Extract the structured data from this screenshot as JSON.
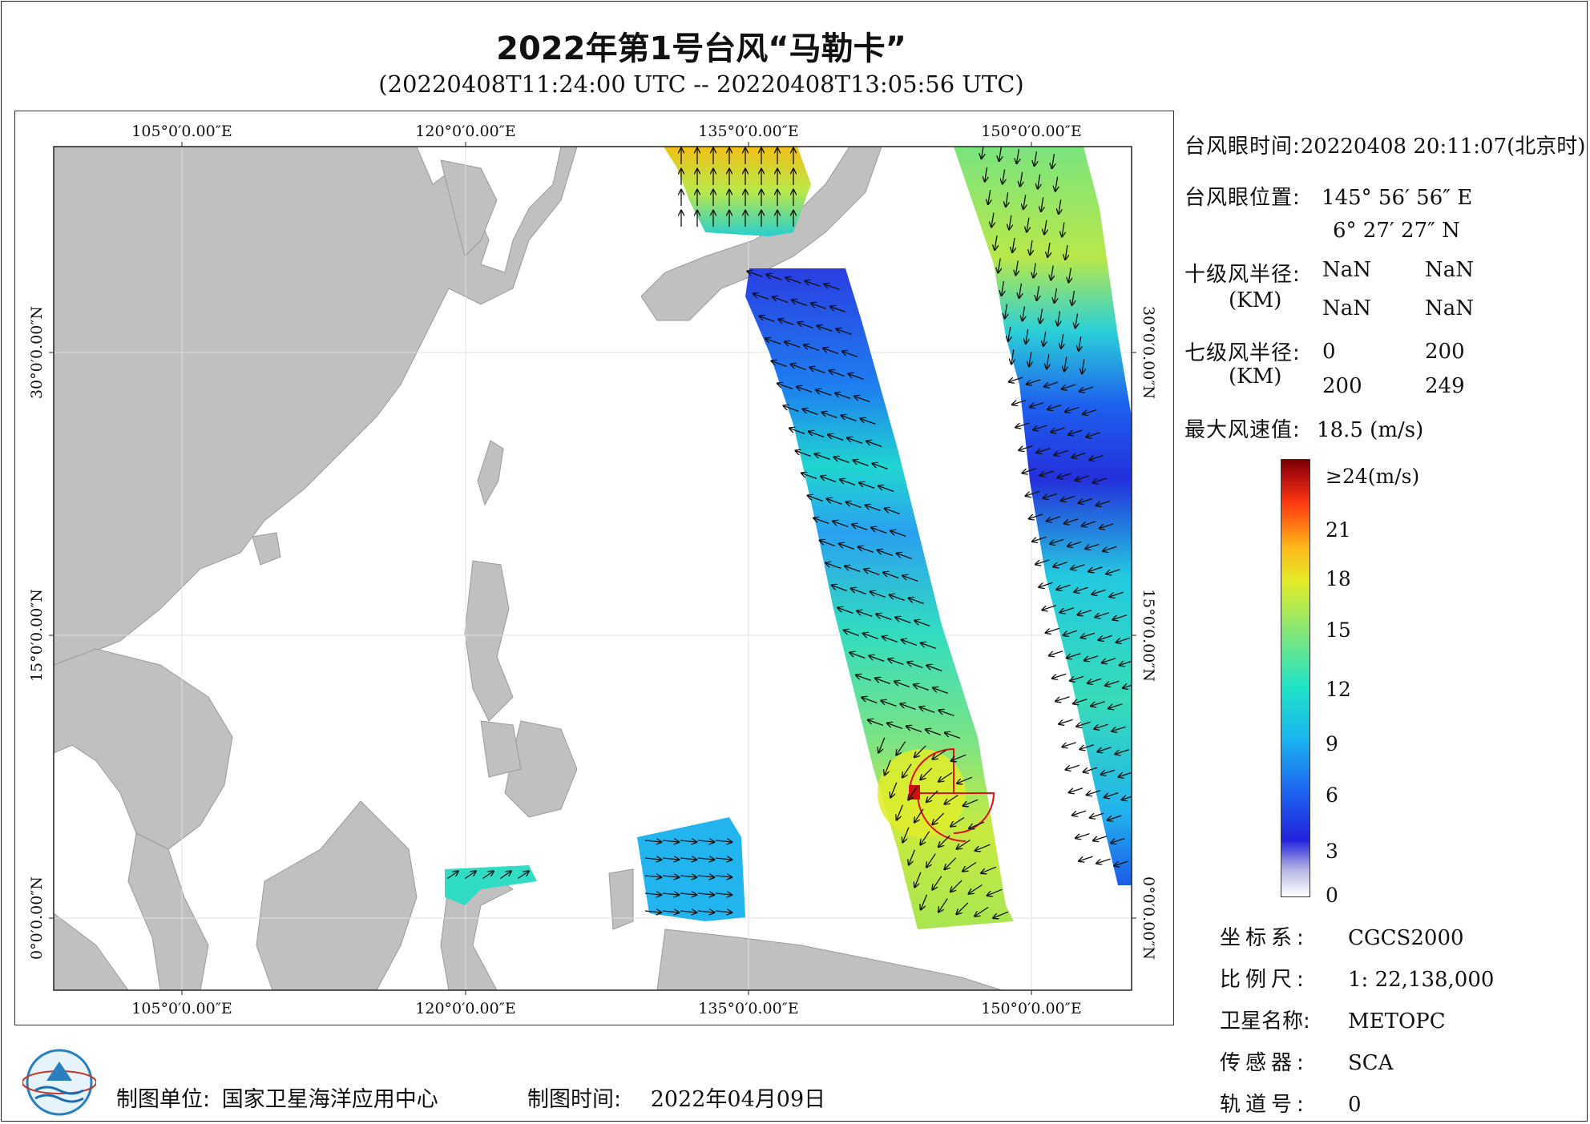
{
  "title": "2022年第1号台风“马勒卡”",
  "subtitle": "(20220408T11:24:00 UTC -- 20220408T13:05:56 UTC)",
  "map": {
    "lon_labels": [
      "105°0′0.00″E",
      "120°0′0.00″E",
      "135°0′0.00″E",
      "150°0′0.00″E"
    ],
    "lat_labels": [
      "30°0′0.00″N",
      "15°0′0.00″N",
      "0°0′0.00″N"
    ],
    "land_color": "#c0c0c0",
    "typhoon_marker_color": "#dd1111"
  },
  "info": {
    "eye_time_key": "台风眼时间:",
    "eye_time_val": "20220408 20:11:07(北京时)",
    "eye_pos_key": "台风眼位置:",
    "eye_lon": "145° 56′ 56″ E",
    "eye_lat": "6° 27′ 27″ N",
    "r10_key": "十级风半径:",
    "r10_unit": "(KM)",
    "r10_vals": [
      "NaN",
      "NaN",
      "NaN",
      "NaN"
    ],
    "r7_key": "七级风半径:",
    "r7_unit": "(KM)",
    "r7_vals": [
      "0",
      "200",
      "200",
      "249"
    ],
    "maxwind_key": "最大风速值:",
    "maxwind_val": "18.5 (m/s)"
  },
  "colorbar": {
    "labels": [
      "≥24(m/s)",
      "21",
      "18",
      "15",
      "12",
      "9",
      "6",
      "3",
      "0"
    ]
  },
  "meta": {
    "crs_key": "坐标系:",
    "crs_val": "CGCS2000",
    "scale_key": "比例尺:",
    "scale_val": "1: 22,138,000",
    "sat_key": "卫星名称:",
    "sat_val": "METOPC",
    "sensor_key": "传感器:",
    "sensor_val": "SCA",
    "orbit_key": "轨道号:",
    "orbit_val": "0"
  },
  "footer": {
    "unit_key": "制图单位:",
    "unit_val": "国家卫星海洋应用中心",
    "time_key": "制图时间:",
    "time_val": "2022年04月09日"
  }
}
